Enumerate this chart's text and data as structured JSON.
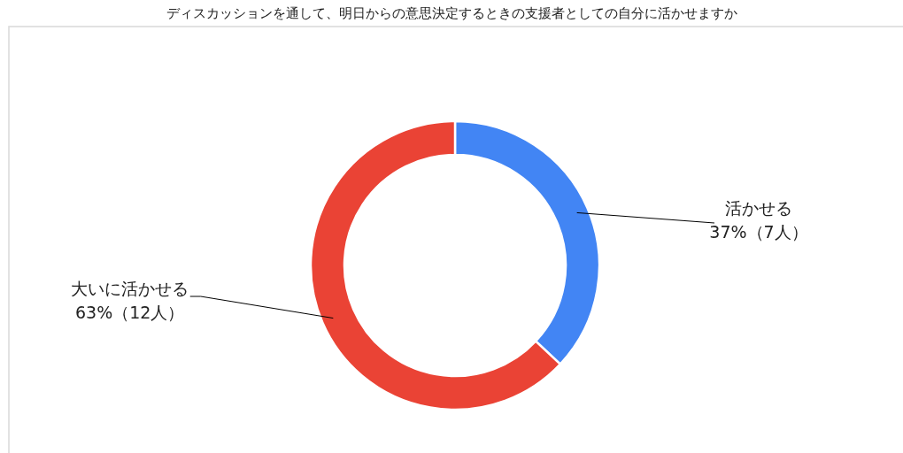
{
  "chart_data": {
    "type": "donut",
    "title": "ディスカッションを通して、明日からの意思決定するときの支援者としての自分に活かせますか",
    "categories": [
      "活かせる",
      "大いに活かせる"
    ],
    "values": [
      37,
      63
    ],
    "value_labels": [
      "37%（7人）",
      "63%（12人）"
    ],
    "colors": [
      "#4285f4",
      "#ea4335"
    ]
  }
}
